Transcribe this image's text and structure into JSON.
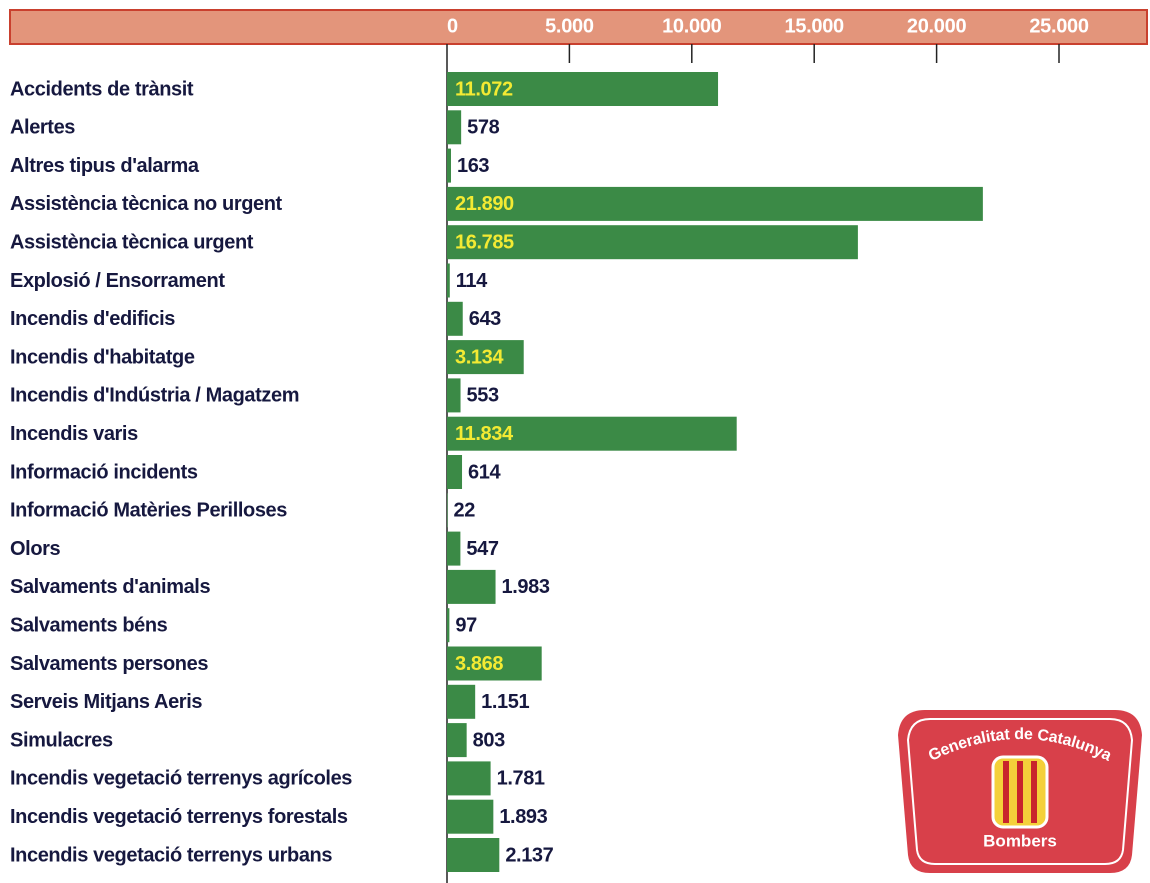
{
  "chart_data": {
    "type": "barh",
    "categories": [
      "Accidents de trànsit",
      "Alertes",
      "Altres tipus d'alarma",
      "Assistència tècnica no urgent",
      "Assistència tècnica urgent",
      "Explosió / Ensorrament",
      "Incendis d'edificis",
      "Incendis d'habitatge",
      "Incendis d'Indústria / Magatzem",
      "Incendis varis",
      "Informació incidents",
      "Informació Matèries Perilloses",
      "Olors",
      "Salvaments d'animals",
      "Salvaments béns",
      "Salvaments persones",
      "Serveis Mitjans Aeris",
      "Simulacres",
      "Incendis vegetació terrenys agrícoles",
      "Incendis vegetació terrenys forestals",
      "Incendis vegetació terrenys urbans"
    ],
    "values": [
      11072,
      578,
      163,
      21890,
      16785,
      114,
      643,
      3134,
      553,
      11834,
      614,
      22,
      547,
      1983,
      97,
      3868,
      1151,
      803,
      1781,
      1893,
      2137
    ],
    "value_labels": [
      "11.072",
      "578",
      "163",
      "21.890",
      "16.785",
      "114",
      "643",
      "3.134",
      "553",
      "11.834",
      "614",
      "22",
      "547",
      "1.983",
      "97",
      "3.868",
      "1.151",
      "803",
      "1.781",
      "1.893",
      "2.137"
    ],
    "color": "#3b8a46",
    "xlim": [
      0,
      25000
    ],
    "xticks": [
      0,
      {
        "value": 5000,
        "label": "5.000"
      },
      {
        "value": 10000,
        "label": "10.000"
      },
      {
        "value": 15000,
        "label": "15.000"
      },
      {
        "value": 20000,
        "label": "20.000"
      },
      {
        "value": 25000,
        "label": "25.000"
      }
    ]
  },
  "logo": {
    "text": "Generalitat de Catalunya",
    "subtitle": "Bombers"
  }
}
